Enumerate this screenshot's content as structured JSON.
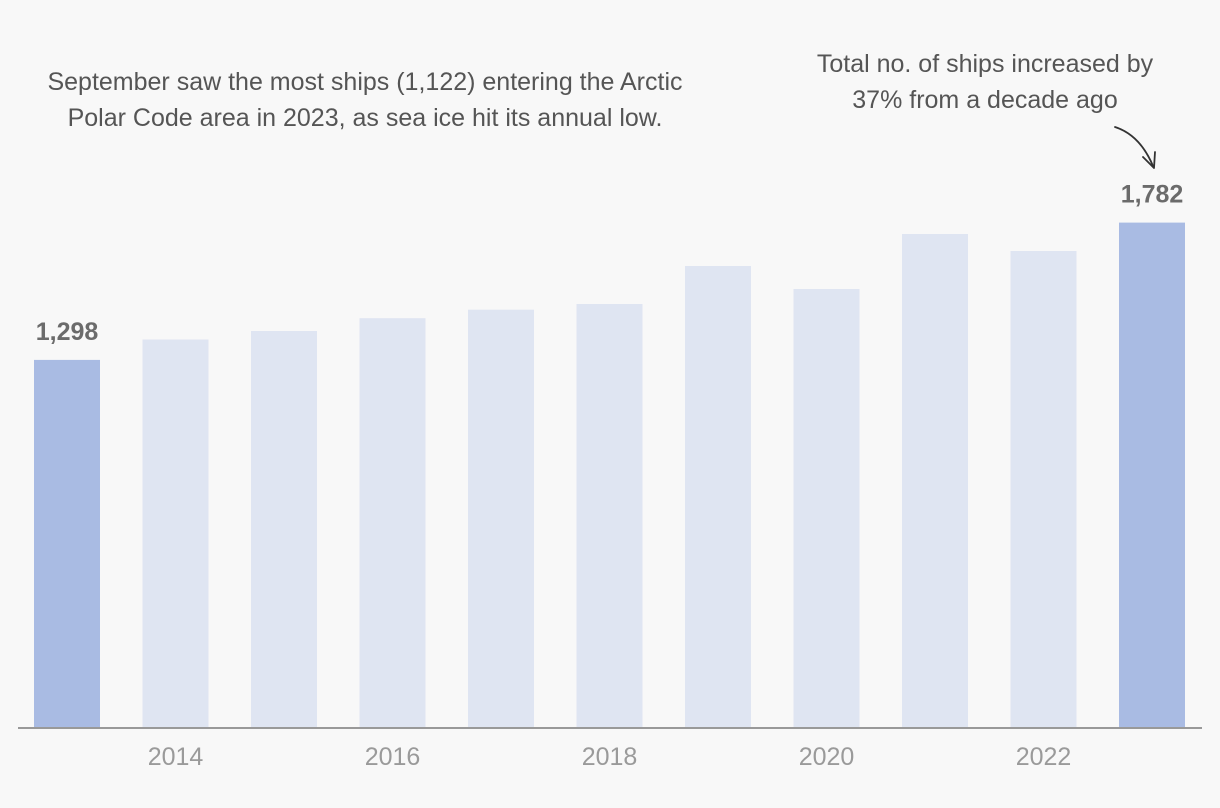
{
  "chart_data": {
    "type": "bar",
    "title": "",
    "xlabel": "",
    "ylabel": "",
    "x": [
      2013,
      2014,
      2015,
      2016,
      2017,
      2018,
      2019,
      2020,
      2021,
      2022,
      2023
    ],
    "values": [
      1298,
      1370,
      1400,
      1445,
      1475,
      1495,
      1629,
      1548,
      1742,
      1682,
      1782
    ],
    "ylim": [
      0,
      2000
    ],
    "x_tick_labels": [
      {
        "x": 2014,
        "label": "2014"
      },
      {
        "x": 2016,
        "label": "2016"
      },
      {
        "x": 2018,
        "label": "2018"
      },
      {
        "x": 2020,
        "label": "2020"
      },
      {
        "x": 2022,
        "label": "2022"
      }
    ],
    "data_labels": [
      {
        "x": 2013,
        "label": "1,298"
      },
      {
        "x": 2023,
        "label": "1,782"
      }
    ],
    "highlighted": [
      2013,
      2023
    ],
    "grid": false,
    "colors": {
      "bar": "#dfe5f2",
      "highlight": "#a9bbe3",
      "baseline": "#999999",
      "arrow": "#333333"
    }
  },
  "annotations": {
    "left": "September saw the most ships (1,122) entering the Arctic Polar Code area in 2023, as sea ice hit its annual low.",
    "right": "Total no. of ships increased by 37% from a decade ago"
  }
}
